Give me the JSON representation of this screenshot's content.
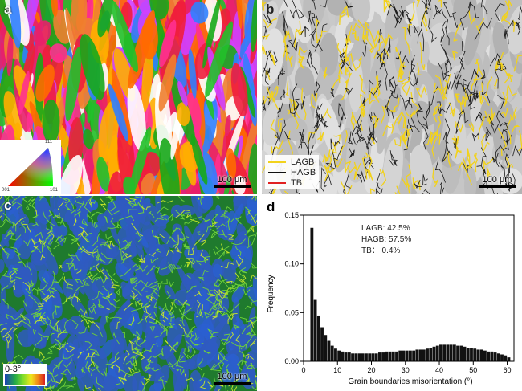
{
  "panel_a": {
    "letter": "a",
    "scale_bar": "100 μm",
    "ipf_labels": {
      "top": "111",
      "left": "001",
      "right": "101"
    }
  },
  "panel_b": {
    "letter": "b",
    "scale_bar": "100 μm",
    "legend": [
      {
        "label": "LAGB",
        "color": "#f2d21b"
      },
      {
        "label": "HAGB",
        "color": "#111111"
      },
      {
        "label": "TB",
        "color": "#e02020"
      }
    ]
  },
  "panel_c": {
    "letter": "c",
    "scale_bar": "100 μm",
    "colorbar_label": "0-3°"
  },
  "panel_d": {
    "letter": "d",
    "annotations": [
      "LAGB: 42.5%",
      "HAGB: 57.5%",
      "TB： 0.4%"
    ]
  },
  "chart_data": {
    "type": "bar",
    "xlabel": "Grain boundaries misorientation (°)",
    "ylabel": "Frequency",
    "xlim": [
      0,
      62
    ],
    "ylim": [
      0,
      0.15
    ],
    "xticks": [
      0,
      10,
      20,
      30,
      40,
      50,
      60
    ],
    "yticks": [
      0.0,
      0.05,
      0.1,
      0.15
    ],
    "ytick_labels": [
      "0.00",
      "0.05",
      "0.10",
      "0.15"
    ],
    "bin_width": 1,
    "x": [
      2.5,
      3.5,
      4.5,
      5.5,
      6.5,
      7.5,
      8.5,
      9.5,
      10.5,
      11.5,
      12.5,
      13.5,
      14.5,
      15.5,
      16.5,
      17.5,
      18.5,
      19.5,
      20.5,
      21.5,
      22.5,
      23.5,
      24.5,
      25.5,
      26.5,
      27.5,
      28.5,
      29.5,
      30.5,
      31.5,
      32.5,
      33.5,
      34.5,
      35.5,
      36.5,
      37.5,
      38.5,
      39.5,
      40.5,
      41.5,
      42.5,
      43.5,
      44.5,
      45.5,
      46.5,
      47.5,
      48.5,
      49.5,
      50.5,
      51.5,
      52.5,
      53.5,
      54.5,
      55.5,
      56.5,
      57.5,
      58.5,
      59.5,
      60.5
    ],
    "values": [
      0.137,
      0.063,
      0.047,
      0.035,
      0.027,
      0.021,
      0.016,
      0.013,
      0.011,
      0.01,
      0.009,
      0.009,
      0.008,
      0.008,
      0.008,
      0.008,
      0.008,
      0.008,
      0.008,
      0.008,
      0.009,
      0.009,
      0.01,
      0.01,
      0.01,
      0.01,
      0.011,
      0.011,
      0.011,
      0.011,
      0.011,
      0.012,
      0.012,
      0.012,
      0.013,
      0.014,
      0.015,
      0.016,
      0.017,
      0.017,
      0.017,
      0.017,
      0.017,
      0.016,
      0.016,
      0.015,
      0.014,
      0.014,
      0.013,
      0.012,
      0.012,
      0.011,
      0.01,
      0.01,
      0.009,
      0.008,
      0.007,
      0.006,
      0.004
    ]
  }
}
